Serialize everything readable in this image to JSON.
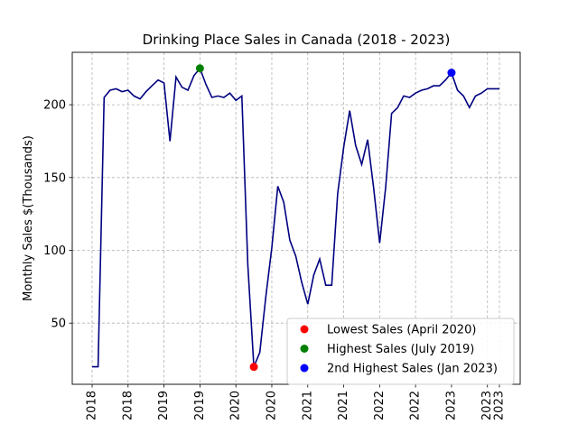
{
  "chart_data": {
    "type": "line",
    "title": "Drinking Place Sales in Canada (2018 - 2023)",
    "xlabel": "",
    "ylabel": "Monthly Sales $(Thousands)",
    "ylim": [
      8,
      236
    ],
    "yticks": [
      50,
      100,
      150,
      200
    ],
    "grid": true,
    "line_color": "#000080",
    "xtick_values": [
      "2018-01",
      "2018-07",
      "2019-01",
      "2019-07",
      "2020-01",
      "2020-07",
      "2021-01",
      "2021-07",
      "2022-01",
      "2022-07",
      "2023-01",
      "2023-07",
      "2023-09"
    ],
    "xtick_labels": [
      "2018",
      "2018",
      "2019",
      "2019",
      "2020",
      "2020",
      "2021",
      "2021",
      "2022",
      "2022",
      "2023",
      "2023",
      "2023"
    ],
    "series": [
      {
        "x": [
          "2018-01",
          "2018-02",
          "2018-03",
          "2018-04",
          "2018-05",
          "2018-06",
          "2018-07",
          "2018-08",
          "2018-09",
          "2018-10",
          "2018-11",
          "2018-12",
          "2019-01",
          "2019-02",
          "2019-03",
          "2019-04",
          "2019-05",
          "2019-06",
          "2019-07",
          "2019-08",
          "2019-09",
          "2019-10",
          "2019-11",
          "2019-12",
          "2020-01",
          "2020-02",
          "2020-03",
          "2020-04",
          "2020-05",
          "2020-06",
          "2020-07",
          "2020-08",
          "2020-09",
          "2020-10",
          "2020-11",
          "2020-12",
          "2021-01",
          "2021-02",
          "2021-03",
          "2021-04",
          "2021-05",
          "2021-06",
          "2021-07",
          "2021-08",
          "2021-09",
          "2021-10",
          "2021-11",
          "2021-12",
          "2022-01",
          "2022-02",
          "2022-03",
          "2022-04",
          "2022-05",
          "2022-06",
          "2022-07",
          "2022-08",
          "2022-09",
          "2022-10",
          "2022-11",
          "2022-12",
          "2023-01",
          "2023-02",
          "2023-03",
          "2023-04",
          "2023-05",
          "2023-06",
          "2023-07",
          "2023-08",
          "2023-09"
        ],
        "values": [
          20,
          20,
          205,
          210,
          211,
          209,
          210,
          206,
          204,
          209,
          213,
          217,
          215,
          175,
          219,
          212,
          210,
          220,
          225,
          214,
          205,
          206,
          205,
          208,
          203,
          206,
          90,
          20,
          30,
          68,
          102,
          144,
          133,
          107,
          96,
          78,
          63,
          83,
          94,
          76,
          76,
          139,
          171,
          196,
          172,
          159,
          176,
          143,
          105,
          143,
          194,
          198,
          206,
          205,
          208,
          210,
          211,
          213,
          213,
          217,
          222,
          210,
          206,
          198,
          206,
          208,
          211,
          211,
          211
        ]
      }
    ],
    "highlights": [
      {
        "label": "Lowest Sales (April 2020)",
        "x": "2020-04",
        "value": 20,
        "color": "#ff0000"
      },
      {
        "label": "Highest Sales (July 2019)",
        "x": "2019-07",
        "value": 225,
        "color": "#008000"
      },
      {
        "label": "2nd Highest Sales (Jan 2023)",
        "x": "2023-01",
        "value": 222,
        "color": "#0000ff"
      }
    ],
    "legend_position": "bottom-right"
  }
}
